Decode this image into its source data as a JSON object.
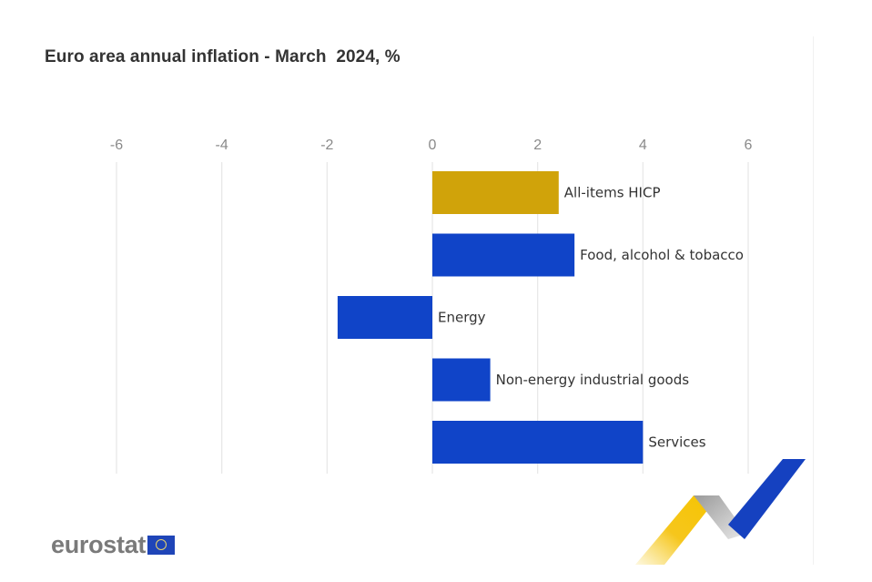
{
  "title": "Euro area annual inflation - March  2024, %",
  "colors": {
    "headline": "#d0a30a",
    "component": "#1044c8",
    "grid": "#e6e6e6",
    "tick_text": "#8a8a8a"
  },
  "chart_data": {
    "type": "bar",
    "orientation": "horizontal",
    "title": "Euro area annual inflation - March  2024, %",
    "xlabel": "",
    "ylabel": "",
    "xlim": [
      -6,
      6
    ],
    "x_ticks": [
      -6,
      -4,
      -2,
      0,
      2,
      4,
      6
    ],
    "x_tick_labels": [
      "-6",
      "-4",
      "-2",
      "0",
      "2",
      "4",
      "6"
    ],
    "x_axis_position": "top",
    "grid": true,
    "categories": [
      "All-items HICP",
      "Food, alcohol & tobacco",
      "Energy",
      "Non-energy industrial goods",
      "Services"
    ],
    "values": [
      2.4,
      2.7,
      -1.8,
      1.1,
      4.0
    ],
    "bar_colors": [
      "#d0a30a",
      "#1044c8",
      "#1044c8",
      "#1044c8",
      "#1044c8"
    ],
    "legend": "none"
  },
  "branding": {
    "logo_text": "eurostat",
    "flag_icon": "eu-flag-icon",
    "decoration": "eurostat-ribbon-graphic"
  }
}
